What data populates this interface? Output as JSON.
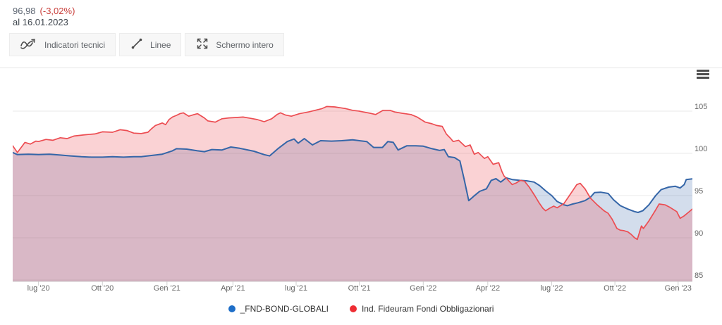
{
  "header": {
    "price": "96,98",
    "change": "(-3,02%)",
    "as_of": "al 16.01.2023"
  },
  "toolbar": {
    "buttons": [
      {
        "label": "Indicatori tecnici",
        "icon": "technical-indicators-icon"
      },
      {
        "label": "Linee",
        "icon": "trend-line-icon"
      },
      {
        "label": "Schermo intero",
        "icon": "fullscreen-icon"
      }
    ]
  },
  "menu": {
    "icon": "hamburger-menu-icon"
  },
  "legend": {
    "items": [
      {
        "label": "_FND-BOND-GLOBALI",
        "color": "#1e6ec8"
      },
      {
        "label": "Ind. Fideuram Fondi Obbligazionari",
        "color": "#ee2d33"
      }
    ]
  },
  "chart_data": {
    "type": "area",
    "title": "",
    "xlabel": "",
    "ylabel": "",
    "ylim": [
      84.8,
      110.2
    ],
    "yticks": [
      105,
      100,
      95,
      90,
      85
    ],
    "grid": true,
    "legend_position": "bottom",
    "xticks": [
      {
        "label": "lug '20",
        "t": 3.8
      },
      {
        "label": "Ott '20",
        "t": 13.2
      },
      {
        "label": "Gen '21",
        "t": 22.7
      },
      {
        "label": "Apr '21",
        "t": 32.4
      },
      {
        "label": "lug '21",
        "t": 41.7
      },
      {
        "label": "Ott '21",
        "t": 51.0
      },
      {
        "label": "Gen '22",
        "t": 60.4
      },
      {
        "label": "Apr '22",
        "t": 69.9
      },
      {
        "label": "lug '22",
        "t": 79.3
      },
      {
        "label": "Ott '22",
        "t": 88.6
      },
      {
        "label": "Gen '23",
        "t": 97.9
      }
    ],
    "x_axis_note": "t = percent of time axis from 2020-06 (0) to 2023-01-16 (100)",
    "series": [
      {
        "name": "_FND-BOND-GLOBALI",
        "color": "#3566a8",
        "fill": "rgba(53,102,168,0.22)",
        "last_value": 96.98,
        "change_pct": -3.02,
        "points": [
          [
            0,
            100.1
          ],
          [
            0.7,
            99.85
          ],
          [
            2.3,
            99.9
          ],
          [
            3.8,
            99.85
          ],
          [
            5.4,
            99.9
          ],
          [
            7,
            99.8
          ],
          [
            8.5,
            99.7
          ],
          [
            10.1,
            99.6
          ],
          [
            11.6,
            99.55
          ],
          [
            13.2,
            99.55
          ],
          [
            14.7,
            99.6
          ],
          [
            16.3,
            99.55
          ],
          [
            17.8,
            99.6
          ],
          [
            18.9,
            99.6
          ],
          [
            20.4,
            99.75
          ],
          [
            22,
            99.9
          ],
          [
            23.5,
            100.3
          ],
          [
            24.1,
            100.55
          ],
          [
            25.6,
            100.5
          ],
          [
            27.2,
            100.3
          ],
          [
            28.2,
            100.2
          ],
          [
            29.3,
            100.45
          ],
          [
            30.8,
            100.4
          ],
          [
            32.1,
            100.75
          ],
          [
            33.4,
            100.6
          ],
          [
            35.5,
            100.25
          ],
          [
            37,
            99.85
          ],
          [
            37.8,
            99.7
          ],
          [
            39.1,
            100.6
          ],
          [
            40.4,
            101.4
          ],
          [
            41.4,
            101.7
          ],
          [
            42,
            101.2
          ],
          [
            42.9,
            101.75
          ],
          [
            44.1,
            101
          ],
          [
            45.3,
            101.5
          ],
          [
            46.9,
            101.45
          ],
          [
            48.4,
            101.5
          ],
          [
            50,
            101.6
          ],
          [
            51,
            101.5
          ],
          [
            52.1,
            101.4
          ],
          [
            53.1,
            100.7
          ],
          [
            54.4,
            100.7
          ],
          [
            55.2,
            101.4
          ],
          [
            56,
            101.3
          ],
          [
            56.7,
            100.4
          ],
          [
            58,
            100.9
          ],
          [
            59.3,
            100.9
          ],
          [
            60.4,
            100.85
          ],
          [
            61.7,
            100.55
          ],
          [
            62.8,
            100.35
          ],
          [
            63.5,
            100.45
          ],
          [
            64.1,
            99.6
          ],
          [
            65,
            99.5
          ],
          [
            65.8,
            99.1
          ],
          [
            66.4,
            97
          ],
          [
            67.1,
            94.4
          ],
          [
            67.8,
            94.9
          ],
          [
            68.7,
            95.5
          ],
          [
            69.7,
            95.8
          ],
          [
            70.4,
            96.8
          ],
          [
            71.1,
            97
          ],
          [
            71.8,
            96.6
          ],
          [
            72.6,
            97.1
          ],
          [
            73.5,
            96.9
          ],
          [
            74.6,
            96.8
          ],
          [
            75.6,
            96.75
          ],
          [
            76.7,
            96.6
          ],
          [
            77.5,
            96.2
          ],
          [
            78.5,
            95.5
          ],
          [
            79.3,
            95
          ],
          [
            80.1,
            94.3
          ],
          [
            81.1,
            93.9
          ],
          [
            81.6,
            93.8
          ],
          [
            82.4,
            94
          ],
          [
            83.2,
            94.15
          ],
          [
            84.2,
            94.4
          ],
          [
            85,
            94.8
          ],
          [
            85.6,
            95.35
          ],
          [
            86.5,
            95.4
          ],
          [
            87.6,
            95.25
          ],
          [
            88.4,
            94.5
          ],
          [
            89.4,
            93.8
          ],
          [
            90.5,
            93.4
          ],
          [
            91.5,
            93.1
          ],
          [
            92,
            93
          ],
          [
            92.7,
            93.2
          ],
          [
            93.6,
            93.9
          ],
          [
            94.6,
            95
          ],
          [
            95.4,
            95.7
          ],
          [
            96.5,
            96
          ],
          [
            97.5,
            96.1
          ],
          [
            98.2,
            95.9
          ],
          [
            98.8,
            96.3
          ],
          [
            99.1,
            96.9
          ],
          [
            100,
            96.98
          ]
        ]
      },
      {
        "name": "Ind. Fideuram Fondi Obbligazionari",
        "color": "#ec4d52",
        "fill": "rgba(236,77,82,0.25)",
        "points": [
          [
            0,
            100.9
          ],
          [
            0.7,
            100.1
          ],
          [
            1.8,
            101.3
          ],
          [
            2.6,
            101.1
          ],
          [
            3.4,
            101.45
          ],
          [
            3.8,
            101.4
          ],
          [
            4.9,
            101.65
          ],
          [
            5.9,
            101.55
          ],
          [
            7,
            101.85
          ],
          [
            8,
            101.75
          ],
          [
            9,
            102.05
          ],
          [
            10.6,
            102.2
          ],
          [
            12.1,
            102.3
          ],
          [
            13.2,
            102.55
          ],
          [
            14.7,
            102.5
          ],
          [
            15.8,
            102.8
          ],
          [
            16.8,
            102.7
          ],
          [
            17.8,
            102.4
          ],
          [
            18.9,
            102.35
          ],
          [
            19.9,
            102.5
          ],
          [
            20.4,
            102.9
          ],
          [
            21,
            103.3
          ],
          [
            22,
            103.6
          ],
          [
            22.5,
            103.4
          ],
          [
            23,
            104
          ],
          [
            23.5,
            104.3
          ],
          [
            24.1,
            104.5
          ],
          [
            24.6,
            104.7
          ],
          [
            25.1,
            104.8
          ],
          [
            25.9,
            104.4
          ],
          [
            26.7,
            104.6
          ],
          [
            27.2,
            104.7
          ],
          [
            27.7,
            104.45
          ],
          [
            28.2,
            104.2
          ],
          [
            28.7,
            103.85
          ],
          [
            29.8,
            103.7
          ],
          [
            30.8,
            104.1
          ],
          [
            31.8,
            104.2
          ],
          [
            32.9,
            104.25
          ],
          [
            33.9,
            104.3
          ],
          [
            35,
            104.15
          ],
          [
            36,
            104
          ],
          [
            37,
            103.75
          ],
          [
            38.1,
            104.1
          ],
          [
            38.9,
            104.6
          ],
          [
            39.4,
            104.8
          ],
          [
            40.1,
            104.55
          ],
          [
            41,
            104.4
          ],
          [
            42.2,
            104.7
          ],
          [
            43.5,
            104.9
          ],
          [
            44.5,
            105.1
          ],
          [
            45.5,
            105.3
          ],
          [
            46.2,
            105.55
          ],
          [
            47.4,
            105.5
          ],
          [
            48.2,
            105.4
          ],
          [
            49,
            105.3
          ],
          [
            50,
            105.1
          ],
          [
            51,
            105
          ],
          [
            51.6,
            104.9
          ],
          [
            52.6,
            104.75
          ],
          [
            53.4,
            104.6
          ],
          [
            54.5,
            105.1
          ],
          [
            55.5,
            105.1
          ],
          [
            56.2,
            104.9
          ],
          [
            57.3,
            104.75
          ],
          [
            58.6,
            104.6
          ],
          [
            59.5,
            104.3
          ],
          [
            60.7,
            103.7
          ],
          [
            61.7,
            103.5
          ],
          [
            62.4,
            103.3
          ],
          [
            63.2,
            103.2
          ],
          [
            63.8,
            102.3
          ],
          [
            64.5,
            101.7
          ],
          [
            64.8,
            101.4
          ],
          [
            65.6,
            101.55
          ],
          [
            66.6,
            100.8
          ],
          [
            67.3,
            101
          ],
          [
            67.9,
            99.9
          ],
          [
            68.5,
            100.1
          ],
          [
            69.4,
            99.4
          ],
          [
            69.9,
            99.6
          ],
          [
            70.7,
            98.7
          ],
          [
            71.5,
            98.9
          ],
          [
            72,
            97.8
          ],
          [
            72.3,
            97.3
          ],
          [
            72.8,
            96.9
          ],
          [
            73.5,
            96.3
          ],
          [
            74.1,
            96.5
          ],
          [
            74.7,
            96.8
          ],
          [
            75.3,
            96.7
          ],
          [
            76,
            96
          ],
          [
            76.8,
            95
          ],
          [
            77.4,
            94.2
          ],
          [
            78,
            93.5
          ],
          [
            78.4,
            93.2
          ],
          [
            79,
            93.5
          ],
          [
            79.6,
            93.75
          ],
          [
            80.1,
            93.55
          ],
          [
            81.1,
            94.05
          ],
          [
            82.2,
            95.35
          ],
          [
            83,
            96.3
          ],
          [
            83.5,
            96.45
          ],
          [
            84.2,
            95.8
          ],
          [
            85,
            94.7
          ],
          [
            86,
            93.9
          ],
          [
            87,
            93.2
          ],
          [
            87.6,
            92.9
          ],
          [
            88.2,
            92.2
          ],
          [
            88.9,
            91.1
          ],
          [
            89.4,
            90.9
          ],
          [
            89.9,
            90.85
          ],
          [
            90.5,
            90.7
          ],
          [
            91,
            90.4
          ],
          [
            91.5,
            90
          ],
          [
            91.9,
            89.8
          ],
          [
            92.5,
            91.4
          ],
          [
            92.8,
            91.1
          ],
          [
            93.6,
            92
          ],
          [
            94.6,
            93.3
          ],
          [
            95.1,
            94
          ],
          [
            96,
            93.9
          ],
          [
            96.7,
            93.6
          ],
          [
            97.7,
            93.1
          ],
          [
            98.2,
            92.3
          ],
          [
            98.8,
            92.6
          ],
          [
            99.4,
            93
          ],
          [
            100,
            93.4
          ]
        ]
      }
    ]
  }
}
